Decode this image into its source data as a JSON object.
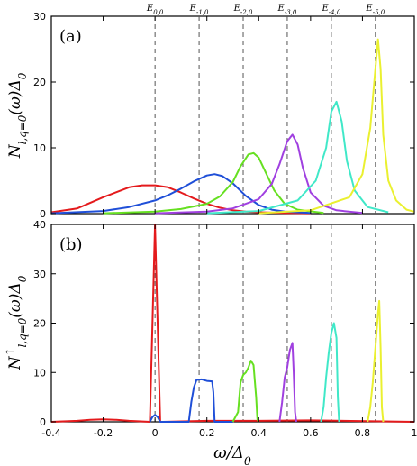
{
  "chart_data": [
    {
      "type": "line",
      "panel_label": "(a)",
      "ylabel": "N_{l,q=0}(ω)Δ_0",
      "xlim": [
        -0.4,
        1.0
      ],
      "ylim": [
        0,
        30
      ],
      "yticks": [
        "0",
        "10",
        "20",
        "30"
      ],
      "vlines": [
        {
          "label": "E_{0,0}",
          "x": 0.0
        },
        {
          "label": "E_{-1,0}",
          "x": 0.17
        },
        {
          "label": "E_{-2,0}",
          "x": 0.34
        },
        {
          "label": "E_{-3,0}",
          "x": 0.51
        },
        {
          "label": "E_{-4,0}",
          "x": 0.68
        },
        {
          "label": "E_{-5,0}",
          "x": 0.85
        }
      ],
      "series": [
        {
          "color": "#e41a1c",
          "x": [
            -0.4,
            -0.3,
            -0.2,
            -0.1,
            -0.05,
            0.0,
            0.05,
            0.1,
            0.15,
            0.2,
            0.25,
            0.3,
            0.35,
            0.4,
            0.5,
            0.6
          ],
          "y": [
            0.2,
            0.8,
            2.5,
            4.0,
            4.3,
            4.3,
            4.0,
            3.2,
            2.3,
            1.5,
            0.9,
            0.5,
            0.3,
            0.2,
            0.1,
            0.05
          ]
        },
        {
          "color": "#1f4fd8",
          "x": [
            -0.4,
            -0.2,
            -0.1,
            0.0,
            0.05,
            0.1,
            0.15,
            0.2,
            0.23,
            0.26,
            0.3,
            0.35,
            0.4,
            0.45,
            0.5,
            0.6
          ],
          "y": [
            0.05,
            0.4,
            1.0,
            2.0,
            2.8,
            3.8,
            4.9,
            5.8,
            6.0,
            5.7,
            4.6,
            2.7,
            1.3,
            0.6,
            0.3,
            0.1
          ]
        },
        {
          "color": "#66e021",
          "x": [
            -0.2,
            0.0,
            0.1,
            0.2,
            0.25,
            0.3,
            0.33,
            0.36,
            0.38,
            0.4,
            0.43,
            0.46,
            0.5,
            0.55,
            0.65
          ],
          "y": [
            0.05,
            0.3,
            0.7,
            1.5,
            2.6,
            4.8,
            7.2,
            9.0,
            9.2,
            8.5,
            6.0,
            3.5,
            1.5,
            0.6,
            0.1
          ]
        },
        {
          "color": "#a040e0",
          "x": [
            0.0,
            0.2,
            0.3,
            0.4,
            0.45,
            0.48,
            0.51,
            0.53,
            0.55,
            0.57,
            0.6,
            0.65,
            0.7,
            0.8
          ],
          "y": [
            0.05,
            0.3,
            0.8,
            2.2,
            4.5,
            7.5,
            11.0,
            12.0,
            10.5,
            7.0,
            3.2,
            1.2,
            0.5,
            0.1
          ]
        },
        {
          "color": "#40e8c8",
          "x": [
            0.2,
            0.4,
            0.55,
            0.62,
            0.66,
            0.68,
            0.7,
            0.72,
            0.74,
            0.77,
            0.82,
            0.9
          ],
          "y": [
            0.05,
            0.4,
            2.0,
            5.0,
            10.0,
            15.5,
            17.0,
            14.0,
            8.0,
            3.5,
            1.0,
            0.2
          ]
        },
        {
          "color": "#eaf030",
          "x": [
            0.4,
            0.6,
            0.75,
            0.8,
            0.83,
            0.85,
            0.86,
            0.87,
            0.88,
            0.9,
            0.93,
            0.97,
            1.0
          ],
          "y": [
            0.05,
            0.5,
            2.5,
            6.0,
            13.0,
            22.0,
            26.5,
            22.0,
            12.0,
            5.0,
            2.0,
            0.6,
            0.3
          ]
        }
      ]
    },
    {
      "type": "line",
      "panel_label": "(b)",
      "ylabel": "N^↑_{l,q=0}(ω)Δ_0",
      "xlabel": "ω/Δ_0",
      "xlim": [
        -0.4,
        1.0
      ],
      "ylim": [
        0,
        40
      ],
      "xticks": [
        "-0.4",
        "-0.2",
        "0",
        "0.2",
        "0.4",
        "0.6",
        "0.8",
        "1"
      ],
      "yticks": [
        "0",
        "10",
        "20",
        "30",
        "40"
      ],
      "vlines": [
        {
          "x": 0.0
        },
        {
          "x": 0.17
        },
        {
          "x": 0.34
        },
        {
          "x": 0.51
        },
        {
          "x": 0.68
        },
        {
          "x": 0.85
        }
      ],
      "series": [
        {
          "color": "#e41a1c",
          "x": [
            -0.4,
            -0.3,
            -0.25,
            -0.2,
            -0.15,
            -0.1,
            -0.02,
            -0.01,
            0.0,
            0.01,
            0.02,
            0.03,
            0.2,
            0.4,
            0.6,
            1.0
          ],
          "y": [
            0,
            0.2,
            0.4,
            0.5,
            0.4,
            0.2,
            0,
            20,
            40,
            20,
            0,
            0,
            0.2,
            0.2,
            0.3,
            0
          ]
        },
        {
          "color": "#1f4fd8",
          "x": [
            -0.02,
            -0.01,
            0.0,
            0.01,
            0.02,
            0.13,
            0.14,
            0.15,
            0.16,
            0.18,
            0.2,
            0.22,
            0.225,
            0.23,
            0.3
          ],
          "y": [
            0,
            1.0,
            1.4,
            1.0,
            0,
            0,
            4.0,
            7.0,
            8.5,
            8.6,
            8.3,
            8.2,
            6.0,
            0,
            0
          ]
        },
        {
          "color": "#66e021",
          "x": [
            0.3,
            0.32,
            0.33,
            0.34,
            0.35,
            0.36,
            0.37,
            0.38,
            0.39,
            0.395,
            0.4
          ],
          "y": [
            0,
            2.0,
            8.0,
            9.5,
            10.0,
            11.0,
            12.4,
            11.5,
            5.0,
            0.5,
            0
          ]
        },
        {
          "color": "#a040e0",
          "x": [
            0.48,
            0.49,
            0.5,
            0.51,
            0.52,
            0.53,
            0.535,
            0.54,
            0.545
          ],
          "y": [
            0,
            4.0,
            9.0,
            11.0,
            14.5,
            16.0,
            10.0,
            2.0,
            0
          ]
        },
        {
          "color": "#40e8c8",
          "x": [
            0.64,
            0.65,
            0.66,
            0.67,
            0.68,
            0.69,
            0.7,
            0.705,
            0.71
          ],
          "y": [
            0,
            3.0,
            9.0,
            14.0,
            18.0,
            20.0,
            17.0,
            5.0,
            0
          ]
        },
        {
          "color": "#eaf030",
          "x": [
            0.82,
            0.83,
            0.84,
            0.85,
            0.86,
            0.865,
            0.87,
            0.875,
            0.88
          ],
          "y": [
            0,
            3.0,
            8.0,
            15.0,
            22.0,
            24.5,
            15.0,
            3.0,
            0
          ]
        }
      ]
    }
  ]
}
